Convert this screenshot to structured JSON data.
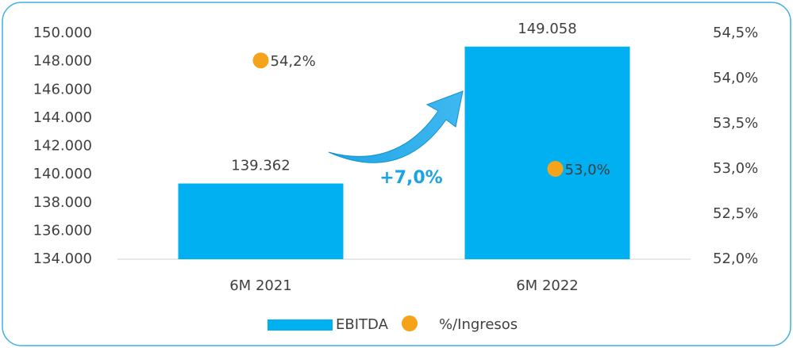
{
  "chart_data": {
    "type": "bar",
    "categories": [
      "6M 2021",
      "6M 2022"
    ],
    "series": [
      {
        "name": "EBITDA",
        "type": "bar",
        "color": "#00b0f0",
        "values": [
          139362,
          149058
        ],
        "value_labels": [
          "139.362",
          "149.058"
        ]
      },
      {
        "name": "%/Ingresos",
        "type": "scatter",
        "axis": "y2",
        "color": "#f5a31a",
        "values": [
          54.2,
          53.0
        ],
        "value_labels": [
          "54,2%",
          "53,0%"
        ]
      }
    ],
    "ylim": [
      134000,
      150000
    ],
    "yticks": [
      {
        "value": 134000,
        "label": "134.000"
      },
      {
        "value": 136000,
        "label": "136.000"
      },
      {
        "value": 138000,
        "label": "138.000"
      },
      {
        "value": 140000,
        "label": "140.000"
      },
      {
        "value": 142000,
        "label": "142.000"
      },
      {
        "value": 144000,
        "label": "144.000"
      },
      {
        "value": 146000,
        "label": "146.000"
      },
      {
        "value": 148000,
        "label": "148.000"
      },
      {
        "value": 150000,
        "label": "150.000"
      }
    ],
    "y2lim": [
      52.0,
      54.5
    ],
    "y2ticks": [
      {
        "value": 52.0,
        "label": "52,0%"
      },
      {
        "value": 52.5,
        "label": "52,5%"
      },
      {
        "value": 53.0,
        "label": "53,0%"
      },
      {
        "value": 53.5,
        "label": "53,5%"
      },
      {
        "value": 54.0,
        "label": "54,0%"
      },
      {
        "value": 54.5,
        "label": "54,5%"
      }
    ],
    "annotations": [
      "+7,0%"
    ],
    "legend": "bottom"
  }
}
